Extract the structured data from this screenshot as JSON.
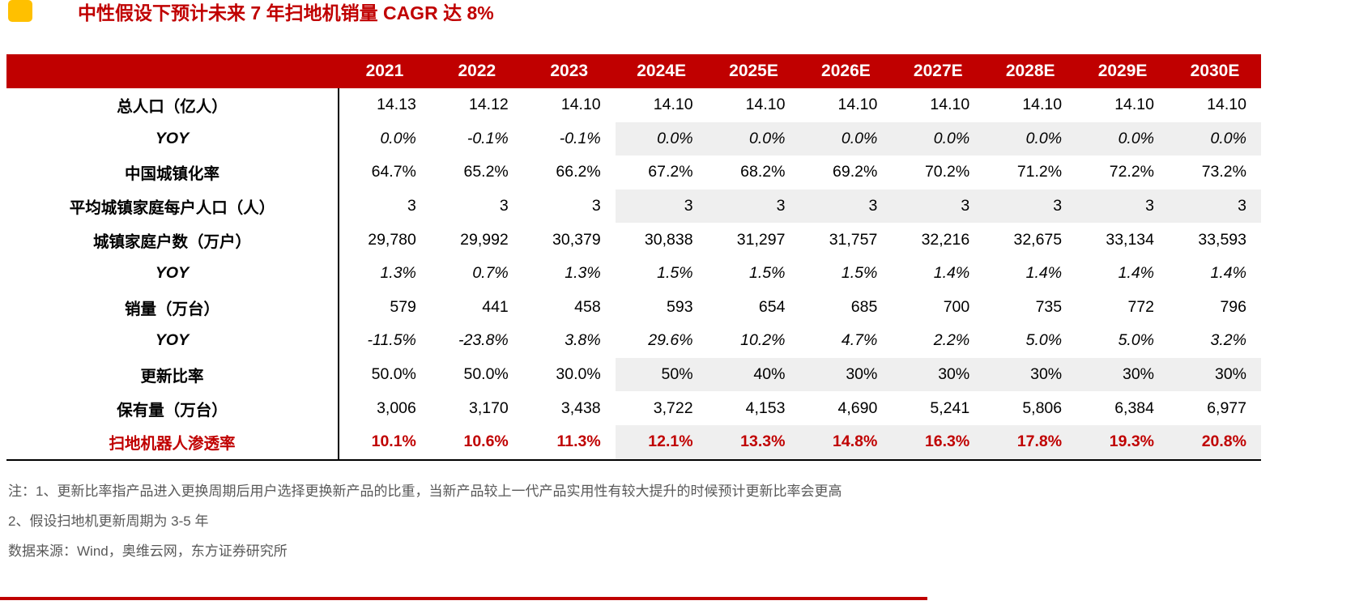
{
  "title": "中性假设下预计未来 7 年扫地机销量 CAGR 达 8%",
  "colors": {
    "accent": "#C00000",
    "shaded": "#EFEFEF",
    "logo": "#FFC000"
  },
  "table": {
    "columns": [
      "",
      "2021",
      "2022",
      "2023",
      "2024E",
      "2025E",
      "2026E",
      "2027E",
      "2028E",
      "2029E",
      "2030E"
    ],
    "rows": [
      {
        "label": "总人口（亿人）",
        "style": "normal",
        "shaded": false,
        "values": [
          "14.13",
          "14.12",
          "14.10",
          "14.10",
          "14.10",
          "14.10",
          "14.10",
          "14.10",
          "14.10",
          "14.10"
        ]
      },
      {
        "label": "YOY",
        "style": "italic",
        "shaded": true,
        "values": [
          "0.0%",
          "-0.1%",
          "-0.1%",
          "0.0%",
          "0.0%",
          "0.0%",
          "0.0%",
          "0.0%",
          "0.0%",
          "0.0%"
        ]
      },
      {
        "label": "中国城镇化率",
        "style": "normal",
        "shaded": false,
        "values": [
          "64.7%",
          "65.2%",
          "66.2%",
          "67.2%",
          "68.2%",
          "69.2%",
          "70.2%",
          "71.2%",
          "72.2%",
          "73.2%"
        ]
      },
      {
        "label": "平均城镇家庭每户人口（人）",
        "style": "normal",
        "shaded": true,
        "values": [
          "3",
          "3",
          "3",
          "3",
          "3",
          "3",
          "3",
          "3",
          "3",
          "3"
        ]
      },
      {
        "label": "城镇家庭户数（万户）",
        "style": "normal",
        "shaded": false,
        "values": [
          "29,780",
          "29,992",
          "30,379",
          "30,838",
          "31,297",
          "31,757",
          "32,216",
          "32,675",
          "33,134",
          "33,593"
        ]
      },
      {
        "label": "YOY",
        "style": "italic",
        "shaded": false,
        "values": [
          "1.3%",
          "0.7%",
          "1.3%",
          "1.5%",
          "1.5%",
          "1.5%",
          "1.4%",
          "1.4%",
          "1.4%",
          "1.4%"
        ]
      },
      {
        "label": "销量（万台）",
        "style": "normal",
        "shaded": false,
        "values": [
          "579",
          "441",
          "458",
          "593",
          "654",
          "685",
          "700",
          "735",
          "772",
          "796"
        ]
      },
      {
        "label": "YOY",
        "style": "italic",
        "shaded": false,
        "values": [
          "-11.5%",
          "-23.8%",
          "3.8%",
          "29.6%",
          "10.2%",
          "4.7%",
          "2.2%",
          "5.0%",
          "5.0%",
          "3.2%"
        ]
      },
      {
        "label": "更新比率",
        "style": "normal",
        "shaded": true,
        "values": [
          "50.0%",
          "50.0%",
          "30.0%",
          "50%",
          "40%",
          "30%",
          "30%",
          "30%",
          "30%",
          "30%"
        ]
      },
      {
        "label": "保有量（万台）",
        "style": "normal",
        "shaded": false,
        "values": [
          "3,006",
          "3,170",
          "3,438",
          "3,722",
          "4,153",
          "4,690",
          "5,241",
          "5,806",
          "6,384",
          "6,977"
        ]
      },
      {
        "label": "扫地机器人渗透率",
        "style": "highlight",
        "shaded": true,
        "values": [
          "10.1%",
          "10.6%",
          "11.3%",
          "12.1%",
          "13.3%",
          "14.8%",
          "16.3%",
          "17.8%",
          "19.3%",
          "20.8%"
        ]
      }
    ]
  },
  "notes": [
    "注：1、更新比率指产品进入更换周期后用户选择更换新产品的比重，当新产品较上一代产品实用性有较大提升的时候预计更新比率会更高",
    "2、假设扫地机更新周期为 3-5 年",
    "数据来源：Wind，奥维云网，东方证券研究所"
  ]
}
